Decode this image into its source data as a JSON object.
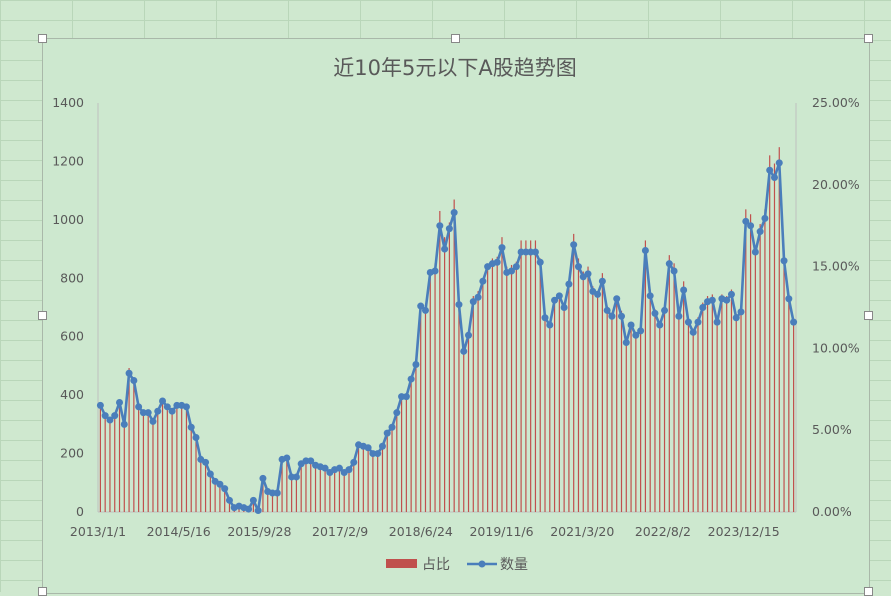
{
  "chart_data": {
    "type": "bar+line",
    "title": "近10年5元以下A股趋势图",
    "legend": [
      {
        "name": "占比",
        "type": "bar",
        "color": "#c0504d"
      },
      {
        "name": "数量",
        "type": "line",
        "color": "#4a7ebb"
      }
    ],
    "legend_position": "bottom",
    "y_left": {
      "min": 0,
      "max": 1400,
      "ticks": [
        "0",
        "200",
        "400",
        "600",
        "800",
        "1000",
        "1200",
        "1400"
      ]
    },
    "y_right": {
      "min": 0,
      "max": 0.25,
      "ticks": [
        "0.00%",
        "5.00%",
        "10.00%",
        "15.00%",
        "20.00%",
        "25.00%"
      ]
    },
    "x_tick_labels": [
      "2013/1/1",
      "2014/5/16",
      "2015/9/28",
      "2017/2/9",
      "2018/6/24",
      "2019/11/6",
      "2021/3/20",
      "2022/8/2",
      "2023/12/15"
    ],
    "gridlines": false,
    "series": [
      {
        "name": "数量",
        "values": [
          365,
          330,
          315,
          330,
          375,
          300,
          475,
          450,
          360,
          340,
          340,
          310,
          345,
          380,
          360,
          345,
          365,
          365,
          360,
          290,
          255,
          180,
          170,
          130,
          105,
          95,
          80,
          40,
          15,
          20,
          15,
          10,
          40,
          5,
          115,
          70,
          65,
          65,
          180,
          185,
          120,
          120,
          165,
          175,
          175,
          160,
          155,
          150,
          135,
          145,
          150,
          135,
          145,
          170,
          230,
          225,
          220,
          200,
          200,
          225,
          270,
          290,
          340,
          395,
          395,
          455,
          505,
          705,
          690,
          820,
          825,
          980,
          900,
          970,
          1025,
          710,
          550,
          605,
          720,
          735,
          790,
          840,
          850,
          855,
          905,
          820,
          825,
          840,
          890,
          890,
          890,
          890,
          855,
          665,
          640,
          725,
          740,
          700,
          780,
          915,
          840,
          805,
          815,
          755,
          745,
          790,
          690,
          670,
          730,
          670,
          580,
          640,
          605,
          620,
          895,
          740,
          680,
          640,
          690,
          850,
          825,
          670,
          760,
          650,
          615,
          650,
          700,
          720,
          725,
          650,
          730,
          725,
          745,
          665,
          685,
          995,
          980,
          890,
          960,
          1005,
          1170,
          1145,
          1195,
          860,
          730,
          650
        ]
      },
      {
        "name": "占比",
        "values": [
          0.065,
          0.059,
          0.056,
          0.059,
          0.067,
          0.054,
          0.088,
          0.081,
          0.065,
          0.061,
          0.061,
          0.055,
          0.062,
          0.068,
          0.064,
          0.062,
          0.065,
          0.065,
          0.064,
          0.052,
          0.046,
          0.032,
          0.03,
          0.023,
          0.019,
          0.017,
          0.014,
          0.007,
          0.003,
          0.004,
          0.003,
          0.002,
          0.007,
          0.001,
          0.021,
          0.013,
          0.012,
          0.012,
          0.032,
          0.033,
          0.021,
          0.021,
          0.029,
          0.031,
          0.031,
          0.029,
          0.028,
          0.027,
          0.024,
          0.026,
          0.027,
          0.024,
          0.026,
          0.03,
          0.041,
          0.04,
          0.039,
          0.036,
          0.036,
          0.04,
          0.048,
          0.052,
          0.061,
          0.071,
          0.071,
          0.081,
          0.09,
          0.126,
          0.123,
          0.146,
          0.152,
          0.184,
          0.168,
          0.177,
          0.191,
          0.128,
          0.099,
          0.109,
          0.132,
          0.135,
          0.142,
          0.151,
          0.155,
          0.156,
          0.168,
          0.15,
          0.151,
          0.153,
          0.166,
          0.166,
          0.166,
          0.166,
          0.155,
          0.119,
          0.115,
          0.131,
          0.134,
          0.126,
          0.141,
          0.17,
          0.155,
          0.147,
          0.15,
          0.138,
          0.134,
          0.146,
          0.126,
          0.122,
          0.131,
          0.123,
          0.106,
          0.115,
          0.109,
          0.113,
          0.166,
          0.136,
          0.124,
          0.116,
          0.125,
          0.157,
          0.152,
          0.121,
          0.141,
          0.118,
          0.111,
          0.119,
          0.128,
          0.132,
          0.133,
          0.12,
          0.133,
          0.132,
          0.136,
          0.121,
          0.126,
          0.185,
          0.182,
          0.16,
          0.176,
          0.185,
          0.218,
          0.213,
          0.223,
          0.16,
          0.133,
          0.118
        ]
      }
    ]
  }
}
